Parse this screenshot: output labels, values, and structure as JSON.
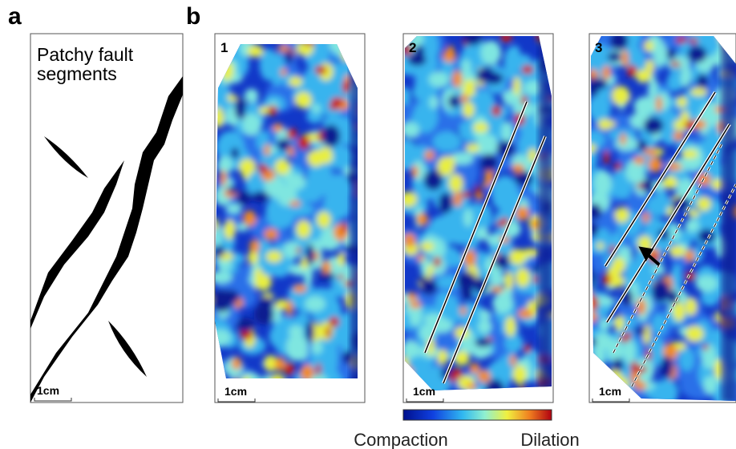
{
  "panel_a": {
    "letter": "a",
    "text_lines": [
      "Patchy fault",
      "segments"
    ],
    "scale": "1cm"
  },
  "panel_b": {
    "letter": "b",
    "maps": [
      {
        "label": "1",
        "scale": "1cm"
      },
      {
        "label": "2",
        "scale": "1cm"
      },
      {
        "label": "3",
        "scale": "1cm"
      }
    ]
  },
  "colorbar": {
    "low": "Compaction",
    "high": "Dilation"
  }
}
